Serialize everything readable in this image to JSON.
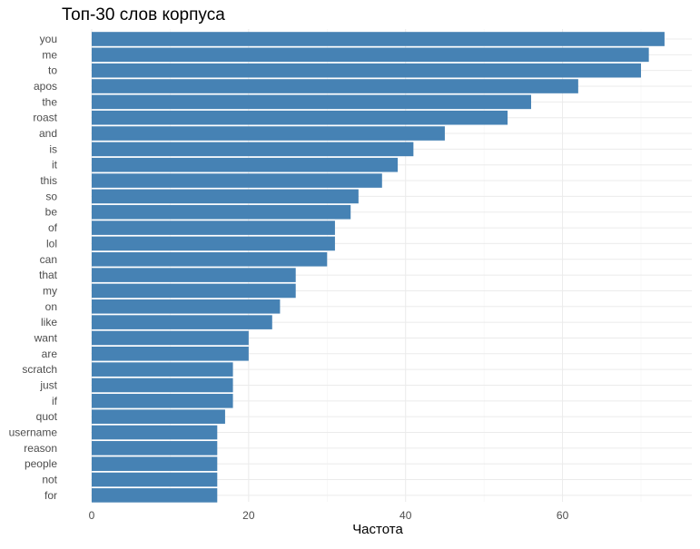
{
  "chart_data": {
    "type": "bar",
    "orientation": "horizontal",
    "title": "Топ-30 слов корпуса",
    "xlabel": "Частота",
    "ylabel": "",
    "xlim": [
      0,
      75
    ],
    "x_ticks": [
      0,
      20,
      40,
      60
    ],
    "grid": true,
    "bar_color": "#4682B4",
    "categories": [
      "you",
      "me",
      "to",
      "apos",
      "the",
      "roast",
      "and",
      "is",
      "it",
      "this",
      "so",
      "be",
      "of",
      "lol",
      "can",
      "that",
      "my",
      "on",
      "like",
      "want",
      "are",
      "scratch",
      "just",
      "if",
      "quot",
      "username",
      "reason",
      "people",
      "not",
      "for"
    ],
    "values": [
      73,
      71,
      70,
      62,
      56,
      53,
      45,
      41,
      39,
      37,
      34,
      33,
      31,
      31,
      30,
      26,
      26,
      24,
      23,
      20,
      20,
      18,
      18,
      18,
      17,
      16,
      16,
      16,
      16,
      16
    ]
  }
}
